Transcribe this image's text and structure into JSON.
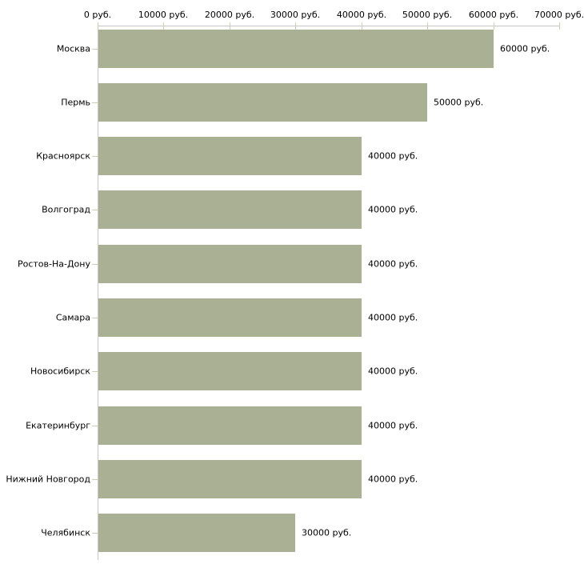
{
  "chart_data": {
    "type": "bar",
    "orientation": "horizontal",
    "title": "",
    "xlabel": "",
    "ylabel": "",
    "unit_suffix": " руб.",
    "categories": [
      "Москва",
      "Пермь",
      "Красноярск",
      "Волгоград",
      "Ростов-На-Дону",
      "Самара",
      "Новосибирск",
      "Екатеринбург",
      "Нижний Новгород",
      "Челябинск"
    ],
    "values": [
      60000,
      50000,
      40000,
      40000,
      40000,
      40000,
      40000,
      40000,
      40000,
      30000
    ],
    "value_labels": [
      "60000 руб.",
      "50000 руб.",
      "40000 руб.",
      "40000 руб.",
      "40000 руб.",
      "40000 руб.",
      "40000 руб.",
      "40000 руб.",
      "40000 руб.",
      "30000 руб."
    ],
    "x_axis": {
      "position": "top",
      "min": 0,
      "max": 70000,
      "tick_values": [
        0,
        10000,
        20000,
        30000,
        40000,
        50000,
        60000,
        70000
      ],
      "tick_labels": [
        "0 руб.",
        "10000 руб.",
        "20000 руб.",
        "30000 руб.",
        "40000 руб.",
        "50000 руб.",
        "60000 руб.",
        "70000 руб."
      ]
    },
    "grid": "off",
    "legend": "none",
    "colors": {
      "bar": "#aab094",
      "tick": "#cdd0ae",
      "axis_line": "#c6c6c6",
      "text": "#000000",
      "background": "#ffffff"
    }
  }
}
